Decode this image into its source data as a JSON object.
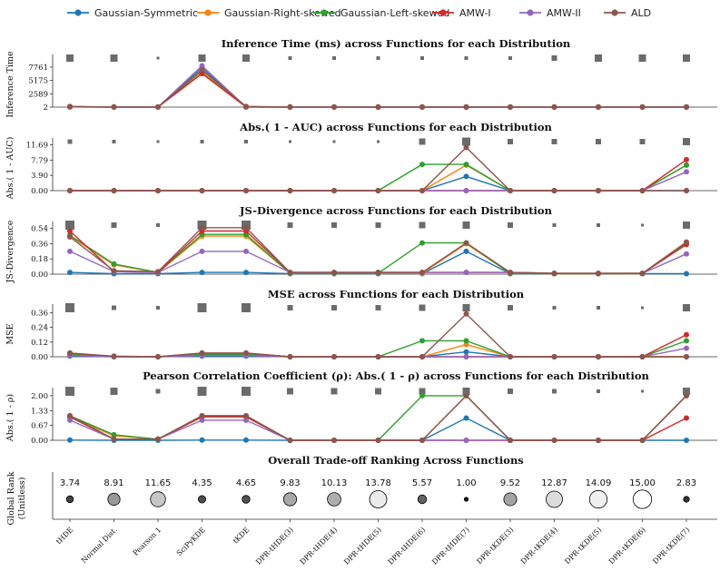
{
  "chart_data": {
    "type": "line",
    "functions": [
      "tHDE",
      "Normal Dist.",
      "Pearson 1",
      "SciPyKDE",
      "tKDE",
      "DPR-tHDE(3)",
      "DPR-tHDE(4)",
      "DPR-tHDE(5)",
      "DPR-tHDE(6)",
      "DPR-tHDE(7)",
      "DPR-tKDE(3)",
      "DPR-tKDE(4)",
      "DPR-tKDE(5)",
      "DPR-tKDE(6)",
      "DPR-tKDE(7)"
    ],
    "legend": [
      {
        "name": "Gaussian-Symmetric",
        "color": "#1f77b4"
      },
      {
        "name": "Gaussian-Right-skewed",
        "color": "#ff7f0e"
      },
      {
        "name": "Gaussian-Left-skewed",
        "color": "#2ca02c"
      },
      {
        "name": "AMW-I",
        "color": "#d62728"
      },
      {
        "name": "AMW-II",
        "color": "#9467bd"
      },
      {
        "name": "ALD",
        "color": "#8c564b"
      }
    ],
    "panels": [
      {
        "title": "Inference Time (ms) across Functions for each Distribution",
        "ylabel": "Inference Time",
        "yticks": [
          "2",
          "2589",
          "5175",
          "7761"
        ],
        "yticks_values": [
          2,
          2589,
          5175,
          7761
        ],
        "ylim": [
          2,
          9500
        ],
        "square_sizes": [
          8,
          8,
          3,
          8,
          8,
          4,
          4,
          4,
          4,
          4,
          4,
          6,
          8,
          8,
          8
        ],
        "series": [
          {
            "name": "Gaussian-Symmetric",
            "values": [
              40,
              25,
              25,
              7600,
              25,
              25,
              25,
              25,
              25,
              25,
              25,
              25,
              25,
              25,
              25
            ]
          },
          {
            "name": "Gaussian-Right-skewed",
            "values": [
              40,
              25,
              25,
              7000,
              25,
              25,
              25,
              25,
              25,
              25,
              25,
              25,
              25,
              25,
              25
            ]
          },
          {
            "name": "Gaussian-Left-skewed",
            "values": [
              40,
              25,
              25,
              6600,
              25,
              25,
              25,
              25,
              25,
              25,
              25,
              25,
              25,
              25,
              25
            ]
          },
          {
            "name": "AMW-I",
            "values": [
              40,
              25,
              25,
              6500,
              25,
              25,
              25,
              25,
              25,
              25,
              25,
              25,
              25,
              25,
              25
            ]
          },
          {
            "name": "AMW-II",
            "values": [
              40,
              25,
              25,
              8000,
              25,
              25,
              25,
              25,
              25,
              25,
              25,
              25,
              25,
              25,
              25
            ]
          },
          {
            "name": "ALD",
            "values": [
              150,
              25,
              25,
              7200,
              150,
              25,
              25,
              25,
              25,
              25,
              25,
              25,
              25,
              25,
              25
            ]
          }
        ]
      },
      {
        "title": "Abs.( 1 - AUC) across Functions for each Distribution",
        "ylabel": "Abs.( 1 - AUC)",
        "yticks": [
          "0.00",
          "3.90",
          "7.79",
          "11.69"
        ],
        "yticks_values": [
          0,
          3.9,
          7.79,
          11.69
        ],
        "ylim": [
          0,
          12.5
        ],
        "square_sizes": [
          5,
          4,
          3,
          4,
          4,
          3,
          3,
          3,
          7,
          9,
          6,
          6,
          6,
          6,
          8
        ],
        "series": [
          {
            "name": "Gaussian-Symmetric",
            "values": [
              0,
              0,
              0,
              0,
              0,
              0,
              0,
              0,
              0,
              3.6,
              0,
              0,
              0,
              0,
              0
            ]
          },
          {
            "name": "Gaussian-Right-skewed",
            "values": [
              0,
              0,
              0,
              0,
              0,
              0,
              0,
              0,
              0,
              6.5,
              0,
              0,
              0,
              0,
              6.5
            ]
          },
          {
            "name": "Gaussian-Left-skewed",
            "values": [
              0,
              0,
              0,
              0,
              0,
              0,
              0,
              0,
              6.7,
              6.7,
              0,
              0,
              0,
              0,
              6.5
            ]
          },
          {
            "name": "AMW-I",
            "values": [
              0,
              0,
              0,
              0,
              0,
              0,
              0,
              0,
              0,
              0,
              0,
              0,
              0,
              0,
              7.9
            ]
          },
          {
            "name": "AMW-II",
            "values": [
              0,
              0,
              0,
              0,
              0,
              0,
              0,
              0,
              0,
              0,
              0,
              0,
              0,
              0,
              4.8
            ]
          },
          {
            "name": "ALD",
            "values": [
              0,
              0,
              0,
              0,
              0,
              0,
              0,
              0,
              0,
              11.0,
              0,
              0,
              0,
              0,
              0
            ]
          }
        ]
      },
      {
        "title": "JS-Divergence across Functions for each Distribution",
        "ylabel": "JS-Divergence",
        "yticks": [
          "0.00",
          "0.18",
          "0.36",
          "0.54"
        ],
        "yticks_values": [
          0,
          0.18,
          0.36,
          0.54
        ],
        "ylim": [
          0,
          0.58
        ],
        "square_sizes": [
          10,
          6,
          4,
          10,
          10,
          6,
          6,
          6,
          7,
          8,
          6,
          4,
          4,
          3,
          8
        ],
        "series": [
          {
            "name": "Gaussian-Symmetric",
            "values": [
              0.02,
              0.005,
              0.005,
              0.02,
              0.02,
              0.005,
              0.005,
              0.005,
              0.005,
              0.27,
              0.005,
              0.005,
              0.005,
              0.005,
              0.005
            ]
          },
          {
            "name": "Gaussian-Right-skewed",
            "values": [
              0.45,
              0.11,
              0.02,
              0.45,
              0.45,
              0.01,
              0.01,
              0.01,
              0.01,
              0.36,
              0.01,
              0.005,
              0.005,
              0.005,
              0.36
            ]
          },
          {
            "name": "Gaussian-Left-skewed",
            "values": [
              0.46,
              0.12,
              0.02,
              0.47,
              0.47,
              0.01,
              0.01,
              0.01,
              0.37,
              0.37,
              0.01,
              0.005,
              0.005,
              0.005,
              0.37
            ]
          },
          {
            "name": "AMW-I",
            "values": [
              0.51,
              0.03,
              0.02,
              0.51,
              0.51,
              0.02,
              0.02,
              0.02,
              0.02,
              0.02,
              0.02,
              0.01,
              0.01,
              0.01,
              0.35
            ]
          },
          {
            "name": "AMW-II",
            "values": [
              0.27,
              0.03,
              0.02,
              0.27,
              0.27,
              0.02,
              0.02,
              0.02,
              0.02,
              0.02,
              0.02,
              0.01,
              0.01,
              0.01,
              0.24
            ]
          },
          {
            "name": "ALD",
            "values": [
              0.44,
              0.04,
              0.03,
              0.55,
              0.55,
              0.02,
              0.02,
              0.02,
              0.02,
              0.37,
              0.02,
              0.01,
              0.01,
              0.01,
              0.38
            ]
          }
        ]
      },
      {
        "title": "MSE across Functions for each Distribution",
        "ylabel": "MSE",
        "yticks": [
          "0.00",
          "0.12",
          "0.24",
          "0.36"
        ],
        "yticks_values": [
          0,
          0.12,
          0.24,
          0.36
        ],
        "ylim": [
          0,
          0.4
        ],
        "square_sizes": [
          10,
          5,
          4,
          10,
          10,
          6,
          6,
          6,
          7,
          8,
          6,
          4,
          4,
          3,
          8
        ],
        "series": [
          {
            "name": "Gaussian-Symmetric",
            "values": [
              0.005,
              0,
              0,
              0.005,
              0.005,
              0,
              0,
              0,
              0,
              0.04,
              0,
              0,
              0,
              0,
              0
            ]
          },
          {
            "name": "Gaussian-Right-skewed",
            "values": [
              0.02,
              0,
              0,
              0.02,
              0.02,
              0,
              0,
              0,
              0,
              0.1,
              0,
              0,
              0,
              0,
              0
            ]
          },
          {
            "name": "Gaussian-Left-skewed",
            "values": [
              0.02,
              0,
              0,
              0.02,
              0.02,
              0,
              0,
              0,
              0.13,
              0.13,
              0,
              0,
              0,
              0,
              0.13
            ]
          },
          {
            "name": "AMW-I",
            "values": [
              0.03,
              0,
              0,
              0.03,
              0.03,
              0,
              0,
              0,
              0,
              0,
              0,
              0,
              0,
              0,
              0.18
            ]
          },
          {
            "name": "AMW-II",
            "values": [
              0.01,
              0,
              0,
              0.01,
              0.01,
              0,
              0,
              0,
              0,
              0,
              0,
              0,
              0,
              0,
              0.07
            ]
          },
          {
            "name": "ALD",
            "values": [
              0.03,
              0.005,
              0,
              0.03,
              0.03,
              0,
              0,
              0,
              0,
              0.35,
              0,
              0,
              0,
              0,
              0
            ]
          }
        ]
      },
      {
        "title": "Pearson Correlation Coefficient (ρ): Abs.( 1 - ρ) across Functions for each Distribution",
        "ylabel": "Abs.( 1 - ρ)",
        "yticks": [
          "0.00",
          "0.67",
          "1.33",
          "2.00"
        ],
        "yticks_values": [
          0,
          0.67,
          1.33,
          2.0
        ],
        "ylim": [
          0,
          2.2
        ],
        "square_sizes": [
          10,
          8,
          5,
          10,
          10,
          7,
          7,
          7,
          7,
          8,
          6,
          5,
          4,
          3,
          8
        ],
        "series": [
          {
            "name": "Gaussian-Symmetric",
            "values": [
              0.01,
              0,
              0,
              0.01,
              0.01,
              0,
              0,
              0,
              0,
              1.0,
              0,
              0,
              0,
              0,
              0
            ]
          },
          {
            "name": "Gaussian-Right-skewed",
            "values": [
              1.05,
              0.2,
              0.05,
              1.05,
              1.05,
              0,
              0,
              0,
              0,
              2.0,
              0,
              0,
              0,
              0,
              2.0
            ]
          },
          {
            "name": "Gaussian-Left-skewed",
            "values": [
              1.1,
              0.25,
              0.05,
              1.1,
              1.1,
              0,
              0,
              0,
              2.0,
              2.0,
              0,
              0,
              0,
              0,
              2.0
            ]
          },
          {
            "name": "AMW-I",
            "values": [
              1.05,
              0.05,
              0.05,
              1.05,
              1.05,
              0,
              0,
              0,
              0,
              0,
              0,
              0,
              0,
              0,
              1.0
            ]
          },
          {
            "name": "AMW-II",
            "values": [
              0.9,
              0.05,
              0.05,
              0.9,
              0.9,
              0,
              0,
              0,
              0,
              0,
              0,
              0,
              0,
              0,
              2.0
            ]
          },
          {
            "name": "ALD",
            "values": [
              1.1,
              0.05,
              0.05,
              1.1,
              1.1,
              0,
              0,
              0,
              0,
              2.0,
              0,
              0,
              0,
              0,
              2.0
            ]
          }
        ]
      }
    ],
    "ranking": {
      "title": "Overall Trade-off Ranking Across Functions",
      "ylabel_line1": "Global Rank",
      "ylabel_line2": "(Unitless)",
      "values": [
        3.74,
        8.91,
        11.65,
        4.35,
        4.65,
        9.83,
        10.13,
        13.78,
        5.57,
        1.0,
        9.52,
        12.87,
        14.09,
        15.0,
        2.83
      ],
      "labels": [
        "3.74",
        "8.91",
        "11.65",
        "4.35",
        "4.65",
        "9.83",
        "10.13",
        "13.78",
        "5.57",
        "1.00",
        "9.52",
        "12.87",
        "14.09",
        "15.00",
        "2.83"
      ]
    }
  }
}
